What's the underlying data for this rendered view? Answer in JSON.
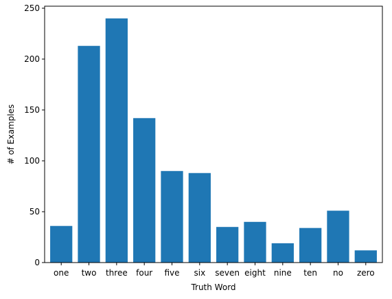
{
  "chart_data": {
    "type": "bar",
    "categories": [
      "one",
      "two",
      "three",
      "four",
      "five",
      "six",
      "seven",
      "eight",
      "nine",
      "ten",
      "no",
      "zero"
    ],
    "values": [
      36,
      213,
      240,
      142,
      90,
      88,
      35,
      40,
      19,
      34,
      51,
      12
    ],
    "xlabel": "Truth Word",
    "ylabel": "# of Examples",
    "ylim": [
      0,
      252
    ],
    "yticks": [
      0,
      50,
      100,
      150,
      200,
      250
    ],
    "grid": false,
    "bar_color": "#1f77b4"
  }
}
